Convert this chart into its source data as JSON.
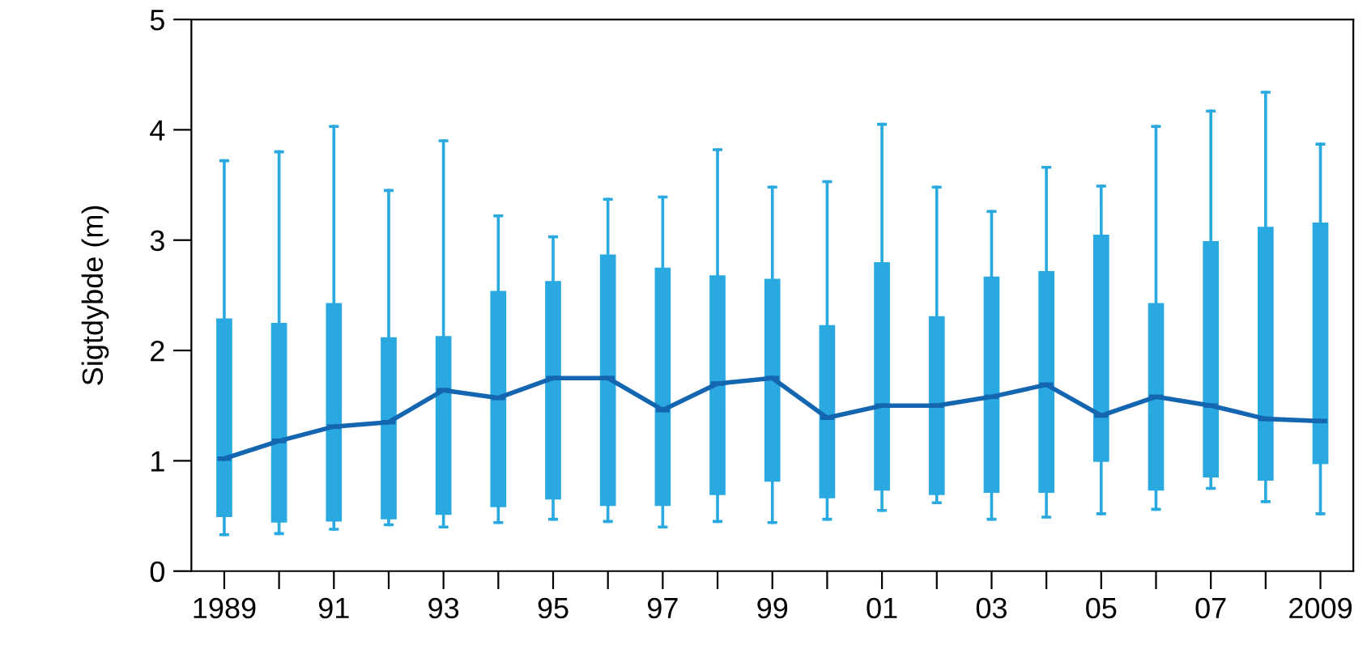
{
  "chart_data": {
    "type": "box",
    "ylabel": "Sigtdybde (m)",
    "categories": [
      "1989",
      null,
      "91",
      null,
      "93",
      null,
      "95",
      null,
      "97",
      null,
      "99",
      null,
      "01",
      null,
      "03",
      null,
      "05",
      null,
      "07",
      null,
      "2009"
    ],
    "color": "#29a9e0",
    "boxes": [
      {
        "low": 0.33,
        "q1": 0.5,
        "median": 1.02,
        "q3": 2.28,
        "high": 3.72
      },
      {
        "low": 0.34,
        "q1": 0.45,
        "median": 1.18,
        "q3": 2.24,
        "high": 3.8
      },
      {
        "low": 0.38,
        "q1": 0.46,
        "median": 1.31,
        "q3": 2.42,
        "high": 4.03
      },
      {
        "low": 0.42,
        "q1": 0.48,
        "median": 1.35,
        "q3": 2.11,
        "high": 3.45
      },
      {
        "low": 0.4,
        "q1": 0.52,
        "median": 1.64,
        "q3": 2.12,
        "high": 3.9
      },
      {
        "low": 0.44,
        "q1": 0.59,
        "median": 1.57,
        "q3": 2.53,
        "high": 3.22
      },
      {
        "low": 0.47,
        "q1": 0.66,
        "median": 1.75,
        "q3": 2.62,
        "high": 3.03
      },
      {
        "low": 0.45,
        "q1": 0.6,
        "median": 1.75,
        "q3": 2.86,
        "high": 3.37
      },
      {
        "low": 0.4,
        "q1": 0.6,
        "median": 1.46,
        "q3": 2.74,
        "high": 3.39
      },
      {
        "low": 0.45,
        "q1": 0.7,
        "median": 1.7,
        "q3": 2.67,
        "high": 3.82
      },
      {
        "low": 0.44,
        "q1": 0.82,
        "median": 1.75,
        "q3": 2.64,
        "high": 3.48
      },
      {
        "low": 0.47,
        "q1": 0.67,
        "median": 1.39,
        "q3": 2.22,
        "high": 3.53
      },
      {
        "low": 0.55,
        "q1": 0.74,
        "median": 1.5,
        "q3": 2.79,
        "high": 4.05
      },
      {
        "low": 0.62,
        "q1": 0.7,
        "median": 1.5,
        "q3": 2.3,
        "high": 3.48
      },
      {
        "low": 0.47,
        "q1": 0.72,
        "median": 1.58,
        "q3": 2.66,
        "high": 3.26
      },
      {
        "low": 0.49,
        "q1": 0.72,
        "median": 1.69,
        "q3": 2.71,
        "high": 3.66
      },
      {
        "low": 0.52,
        "q1": 1.0,
        "median": 1.41,
        "q3": 3.04,
        "high": 3.49
      },
      {
        "low": 0.56,
        "q1": 0.74,
        "median": 1.58,
        "q3": 2.42,
        "high": 4.03
      },
      {
        "low": 0.75,
        "q1": 0.86,
        "median": 1.5,
        "q3": 2.98,
        "high": 4.17
      },
      {
        "low": 0.63,
        "q1": 0.83,
        "median": 1.38,
        "q3": 3.11,
        "high": 4.34
      },
      {
        "low": 0.52,
        "q1": 0.98,
        "median": 1.36,
        "q3": 3.15,
        "high": 3.87
      }
    ],
    "series": [
      {
        "type": "line",
        "color": "#1466b0",
        "values": [
          1.02,
          1.18,
          1.31,
          1.35,
          1.64,
          1.57,
          1.75,
          1.75,
          1.46,
          1.7,
          1.75,
          1.39,
          1.5,
          1.5,
          1.58,
          1.69,
          1.41,
          1.58,
          1.5,
          1.38,
          1.36
        ]
      }
    ],
    "ylim": [
      0,
      5
    ],
    "yticks": [
      0,
      1,
      2,
      3,
      4,
      5
    ],
    "grid": false,
    "legend": false
  }
}
